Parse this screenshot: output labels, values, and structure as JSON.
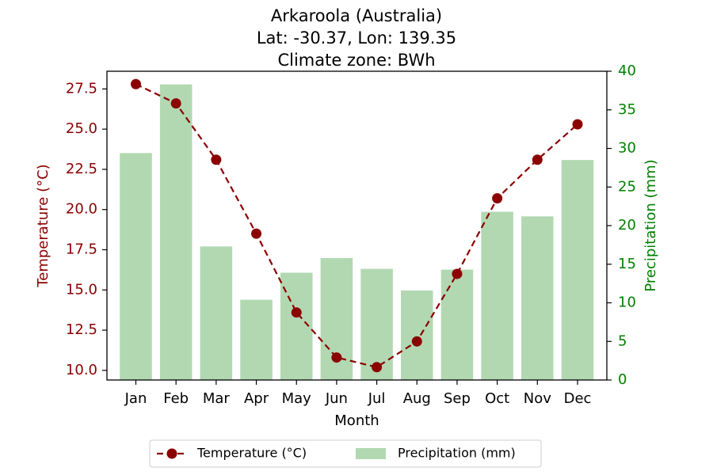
{
  "chart_data": {
    "type": "bar+line",
    "title_lines": [
      "Arkaroola (Australia)",
      "Lat: -30.37, Lon: 139.35",
      "Climate zone: BWh"
    ],
    "xlabel": "Month",
    "ylabel_left": "Temperature (°C)",
    "ylabel_right": "Precipitation (mm)",
    "categories": [
      "Jan",
      "Feb",
      "Mar",
      "Apr",
      "May",
      "Jun",
      "Jul",
      "Aug",
      "Sep",
      "Oct",
      "Nov",
      "Dec"
    ],
    "temperature": {
      "name": "Temperature (°C)",
      "color": "#8B0000",
      "values": [
        27.8,
        26.6,
        23.1,
        18.5,
        13.6,
        10.8,
        10.2,
        11.8,
        16.0,
        20.7,
        23.1,
        25.3
      ]
    },
    "precipitation": {
      "name": "Precipitation (mm)",
      "color": "#b2d8b2",
      "values": [
        29.4,
        38.3,
        17.3,
        10.4,
        13.9,
        15.8,
        14.4,
        11.6,
        14.3,
        21.8,
        21.2,
        28.5
      ]
    },
    "ylim_left": [
      9.4,
      28.6
    ],
    "ylim_right": [
      0,
      40
    ],
    "yticks_left": [
      "10.0",
      "12.5",
      "15.0",
      "17.5",
      "20.0",
      "22.5",
      "25.0",
      "27.5"
    ],
    "yticks_right": [
      "0",
      "5",
      "10",
      "15",
      "20",
      "25",
      "30",
      "35",
      "40"
    ],
    "left_axis_color": "#8B0000",
    "right_axis_color": "#008000",
    "legend_position": "bottom-center"
  }
}
